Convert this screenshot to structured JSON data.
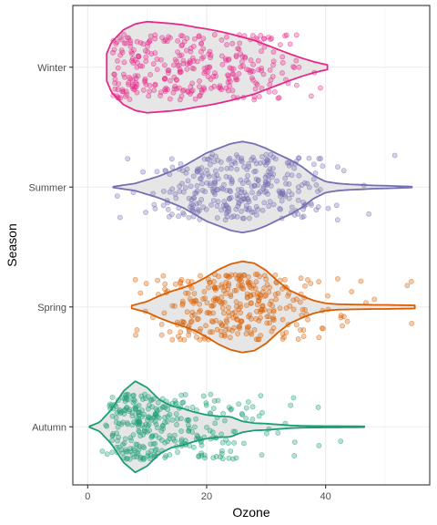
{
  "chart_data": {
    "type": "violin",
    "xlabel": "Ozone",
    "ylabel": "Season",
    "xlim": [
      -2.5,
      57.5
    ],
    "x_ticks": [
      0,
      20,
      40
    ],
    "x_tick_labels": [
      "0",
      "20",
      "40"
    ],
    "grid": true,
    "legend": "none",
    "categories": [
      "Autumn",
      "Spring",
      "Summer",
      "Winter"
    ],
    "series": [
      {
        "category": "Autumn",
        "color": "#1b9e77",
        "points_per_category": 330,
        "range": [
          0.3,
          46.5
        ],
        "density": [
          [
            0.3,
            0.01
          ],
          [
            2,
            0.1
          ],
          [
            4,
            0.38
          ],
          [
            6,
            0.78
          ],
          [
            8,
            1.0
          ],
          [
            10,
            0.86
          ],
          [
            12,
            0.6
          ],
          [
            14,
            0.46
          ],
          [
            16,
            0.4
          ],
          [
            18,
            0.32
          ],
          [
            20,
            0.26
          ],
          [
            22,
            0.23
          ],
          [
            24,
            0.22
          ],
          [
            26,
            0.12
          ],
          [
            28,
            0.08
          ],
          [
            30,
            0.07
          ],
          [
            32,
            0.05
          ],
          [
            34,
            0.03
          ],
          [
            36,
            0.02
          ],
          [
            40,
            0.015
          ],
          [
            44,
            0.012
          ],
          [
            46.5,
            0.01
          ]
        ]
      },
      {
        "category": "Spring",
        "color": "#d95f02",
        "points_per_category": 330,
        "range": [
          7.4,
          55.0
        ],
        "density": [
          [
            7.4,
            0.03
          ],
          [
            10,
            0.12
          ],
          [
            12,
            0.24
          ],
          [
            14,
            0.34
          ],
          [
            16,
            0.42
          ],
          [
            18,
            0.52
          ],
          [
            20,
            0.66
          ],
          [
            22,
            0.82
          ],
          [
            24,
            0.94
          ],
          [
            26,
            1.0
          ],
          [
            28,
            0.96
          ],
          [
            30,
            0.8
          ],
          [
            32,
            0.56
          ],
          [
            34,
            0.36
          ],
          [
            36,
            0.24
          ],
          [
            38,
            0.14
          ],
          [
            40,
            0.08
          ],
          [
            42,
            0.06
          ],
          [
            44,
            0.055
          ],
          [
            46,
            0.05
          ],
          [
            48,
            0.045
          ],
          [
            50,
            0.045
          ],
          [
            52,
            0.04
          ],
          [
            55,
            0.035
          ]
        ]
      },
      {
        "category": "Summer",
        "color": "#7570b3",
        "points_per_category": 330,
        "range": [
          4.3,
          54.5
        ],
        "density": [
          [
            4.3,
            0.01
          ],
          [
            8,
            0.08
          ],
          [
            12,
            0.24
          ],
          [
            16,
            0.45
          ],
          [
            20,
            0.75
          ],
          [
            24,
            0.95
          ],
          [
            26,
            1.0
          ],
          [
            28,
            0.95
          ],
          [
            30,
            0.85
          ],
          [
            32,
            0.72
          ],
          [
            34,
            0.6
          ],
          [
            36,
            0.45
          ],
          [
            38,
            0.25
          ],
          [
            40,
            0.12
          ],
          [
            42,
            0.08
          ],
          [
            44,
            0.06
          ],
          [
            46,
            0.05
          ],
          [
            48,
            0.035
          ],
          [
            50,
            0.03
          ],
          [
            54.5,
            0.01
          ]
        ]
      },
      {
        "category": "Winter",
        "color": "#e7298a",
        "points_per_category": 330,
        "range": [
          3.2,
          40.3
        ],
        "density": [
          [
            3.2,
            0.3
          ],
          [
            4,
            0.55
          ],
          [
            6,
            0.82
          ],
          [
            8,
            0.95
          ],
          [
            10,
            1.0
          ],
          [
            12,
            0.98
          ],
          [
            14,
            0.96
          ],
          [
            16,
            0.93
          ],
          [
            18,
            0.88
          ],
          [
            20,
            0.84
          ],
          [
            22,
            0.79
          ],
          [
            24,
            0.73
          ],
          [
            26,
            0.66
          ],
          [
            28,
            0.59
          ],
          [
            30,
            0.49
          ],
          [
            32,
            0.39
          ],
          [
            34,
            0.29
          ],
          [
            36,
            0.2
          ],
          [
            38,
            0.12
          ],
          [
            40.3,
            0.05
          ]
        ]
      }
    ]
  }
}
